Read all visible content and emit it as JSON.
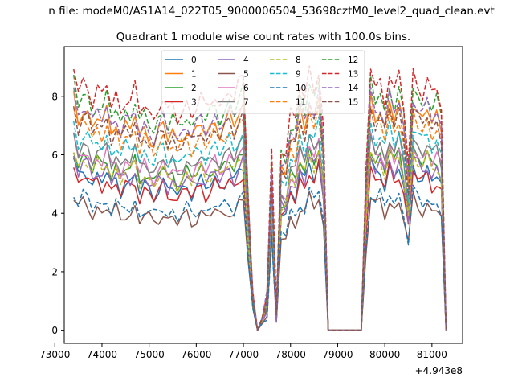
{
  "figure": {
    "suptitle": "n file: modeM0/AS1A14_022T05_9000006504_53698cztM0_level2_quad_clean.evt",
    "title": "Quadrant 1 module wise count rates with 100.0s bins."
  },
  "chart_data": {
    "type": "line",
    "title": "Quadrant 1 module wise count rates with 100.0s bins.",
    "xlabel": "",
    "ylabel": "",
    "x_offset_label": "+4.943e8",
    "xlim": [
      73200,
      81650
    ],
    "ylim": [
      -0.45,
      9.7
    ],
    "x_ticks": [
      73000,
      74000,
      75000,
      76000,
      77000,
      78000,
      79000,
      80000,
      81000
    ],
    "x_tick_labels": [
      "73000",
      "74000",
      "75000",
      "76000",
      "77000",
      "78000",
      "79000",
      "80000",
      "81000"
    ],
    "y_ticks": [
      0,
      2,
      4,
      6,
      8
    ],
    "y_tick_labels": [
      "0",
      "2",
      "4",
      "6",
      "8"
    ],
    "grid": false,
    "legend": {
      "placement": "upper-center",
      "columns": 4
    },
    "x": [
      73400,
      73500,
      73600,
      73700,
      73800,
      73900,
      74000,
      74100,
      74200,
      74300,
      74400,
      74500,
      74600,
      74700,
      74800,
      74900,
      75000,
      75100,
      75200,
      75300,
      75400,
      75500,
      75600,
      75700,
      75800,
      75900,
      76000,
      76100,
      76200,
      76300,
      76400,
      76500,
      76600,
      76700,
      76800,
      76900,
      77000,
      77100,
      77200,
      77300,
      77400,
      77500,
      77600,
      77700,
      77800,
      77900,
      78000,
      78100,
      78200,
      78300,
      78400,
      78500,
      78600,
      78700,
      78800,
      78900,
      79000,
      79100,
      79200,
      79300,
      79400,
      79500,
      79600,
      79700,
      79800,
      79900,
      80000,
      80100,
      80200,
      80300,
      80400,
      80500,
      80600,
      80700,
      80800,
      80900,
      81000,
      81100,
      81200,
      81300
    ],
    "series_template": [
      6.0,
      5.4,
      5.7,
      5.6,
      5.2,
      5.5,
      5.3,
      5.6,
      5.1,
      5.4,
      5.0,
      5.3,
      5.2,
      5.5,
      4.9,
      5.2,
      5.0,
      4.8,
      5.1,
      5.3,
      4.9,
      5.1,
      4.8,
      5.0,
      5.2,
      4.9,
      5.1,
      5.3,
      5.0,
      5.2,
      5.4,
      5.1,
      5.3,
      5.5,
      5.2,
      5.6,
      5.8,
      3.2,
      0.9,
      0.0,
      0.3,
      0.8,
      4.0,
      0.4,
      4.2,
      4.1,
      5.0,
      4.8,
      5.6,
      5.2,
      5.9,
      5.5,
      6.0,
      4.6,
      0.0,
      0.0,
      0.0,
      0.0,
      0.0,
      0.0,
      0.0,
      0.0,
      3.6,
      6.0,
      5.5,
      5.7,
      5.2,
      5.9,
      5.4,
      5.8,
      5.1,
      3.8,
      5.9,
      5.6,
      5.4,
      5.7,
      5.3,
      5.5,
      5.1,
      0.0
    ],
    "series": [
      {
        "name": "0",
        "scale": 0.96,
        "color": "#1f77b4",
        "dash": "solid"
      },
      {
        "name": "1",
        "scale": 1.33,
        "color": "#ff7f0e",
        "dash": "solid"
      },
      {
        "name": "2",
        "scale": 1.05,
        "color": "#2ca02c",
        "dash": "solid"
      },
      {
        "name": "3",
        "scale": 0.93,
        "color": "#d62728",
        "dash": "solid"
      },
      {
        "name": "4",
        "scale": 1.0,
        "color": "#9467bd",
        "dash": "solid"
      },
      {
        "name": "5",
        "scale": 0.76,
        "color": "#8c564b",
        "dash": "solid"
      },
      {
        "name": "6",
        "scale": 1.08,
        "color": "#e377c2",
        "dash": "solid"
      },
      {
        "name": "7",
        "scale": 1.12,
        "color": "#7f7f7f",
        "dash": "solid"
      },
      {
        "name": "8",
        "scale": 1.03,
        "color": "#bcbd22",
        "dash": "dashed"
      },
      {
        "name": "9",
        "scale": 1.18,
        "color": "#17becf",
        "dash": "dashed"
      },
      {
        "name": "10",
        "scale": 0.8,
        "color": "#1f77b4",
        "dash": "dashed"
      },
      {
        "name": "11",
        "scale": 1.26,
        "color": "#ff7f0e",
        "dash": "dashed"
      },
      {
        "name": "12",
        "scale": 1.42,
        "color": "#2ca02c",
        "dash": "dashed"
      },
      {
        "name": "13",
        "scale": 1.5,
        "color": "#d62728",
        "dash": "dashed"
      },
      {
        "name": "14",
        "scale": 1.36,
        "color": "#9467bd",
        "dash": "dashed"
      },
      {
        "name": "15",
        "scale": 1.29,
        "color": "#8c564b",
        "dash": "dashed"
      }
    ]
  }
}
